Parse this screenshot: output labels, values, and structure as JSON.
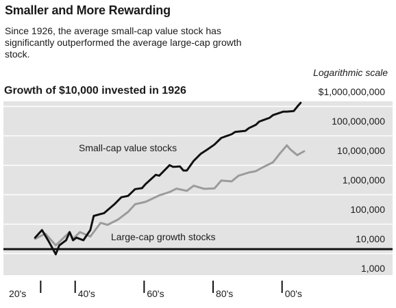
{
  "title": "Smaller and More Rewarding",
  "subtitle": "Since 1926, the average small-cap value stock has significantly outperformed the average large-cap growth stock.",
  "scale_note": "Logarithmic scale",
  "heading": "Growth of $10,000 invested in 1926",
  "colors": {
    "band": "#e3e3e3",
    "small_cap": "#111111",
    "large_cap": "#9b9b9b",
    "baseline": "#111111"
  },
  "chart_data": {
    "type": "line",
    "title": "Growth of $10,000 invested in 1926",
    "y_scale": "log",
    "ylim": [
      1000,
      1000000000
    ],
    "y_ticks": [
      1000,
      10000,
      100000,
      1000000,
      10000000,
      100000000,
      1000000000
    ],
    "y_tick_labels": [
      "1,000",
      "10,000",
      "100,000",
      "1,000,000",
      "10,000,000",
      "100,000,000",
      "$1,000,000,000"
    ],
    "x_ticks": [
      1920,
      1940,
      1960,
      1980,
      2000
    ],
    "x_tick_labels": [
      "20's",
      "40's",
      "60's",
      "80's",
      "00's"
    ],
    "xlim": [
      1919,
      2009
    ],
    "baseline_value": 10000,
    "series": [
      {
        "name": "Small-cap value stocks",
        "x": [
          1926,
          1928,
          1930,
          1932,
          1933,
          1935,
          1936,
          1937,
          1938,
          1940,
          1942,
          1943,
          1945,
          1946,
          1949,
          1951,
          1953,
          1955,
          1957,
          1958,
          1961,
          1962,
          1965,
          1966,
          1968,
          1969,
          1970,
          1972,
          1974,
          1976,
          1978,
          1980,
          1983,
          1984,
          1987,
          1988,
          1990,
          1991,
          1994,
          1995,
          1998,
          1999,
          2001,
          2002,
          2003
        ],
        "y": [
          11000,
          20000,
          8000,
          3000,
          6000,
          9000,
          17000,
          9000,
          11000,
          9000,
          20000,
          60000,
          70000,
          75000,
          150000,
          260000,
          290000,
          490000,
          530000,
          720000,
          1500000,
          1400000,
          3200000,
          2800000,
          2900000,
          2100000,
          2100000,
          4500000,
          7700000,
          11000000,
          16000000,
          27000000,
          36000000,
          43000000,
          47000000,
          58000000,
          75000000,
          97000000,
          130000000,
          160000000,
          210000000,
          210000000,
          220000000,
          310000000,
          420000000
        ]
      },
      {
        "name": "Large-cap growth stocks",
        "x": [
          1926,
          1929,
          1932,
          1936,
          1937,
          1939,
          1942,
          1945,
          1947,
          1950,
          1953,
          1955,
          1958,
          1962,
          1965,
          1967,
          1970,
          1972,
          1975,
          1978,
          1980,
          1983,
          1985,
          1988,
          1990,
          1992,
          1995,
          1997,
          1999,
          2000,
          2002,
          2004
        ],
        "y": [
          10000,
          15000,
          6000,
          17000,
          10000,
          17000,
          12000,
          35000,
          30000,
          45000,
          83000,
          150000,
          180000,
          300000,
          390000,
          510000,
          430000,
          640000,
          500000,
          520000,
          960000,
          900000,
          1400000,
          1800000,
          2000000,
          2700000,
          4000000,
          8000000,
          15000000,
          11000000,
          7000000,
          9500000
        ]
      }
    ]
  }
}
